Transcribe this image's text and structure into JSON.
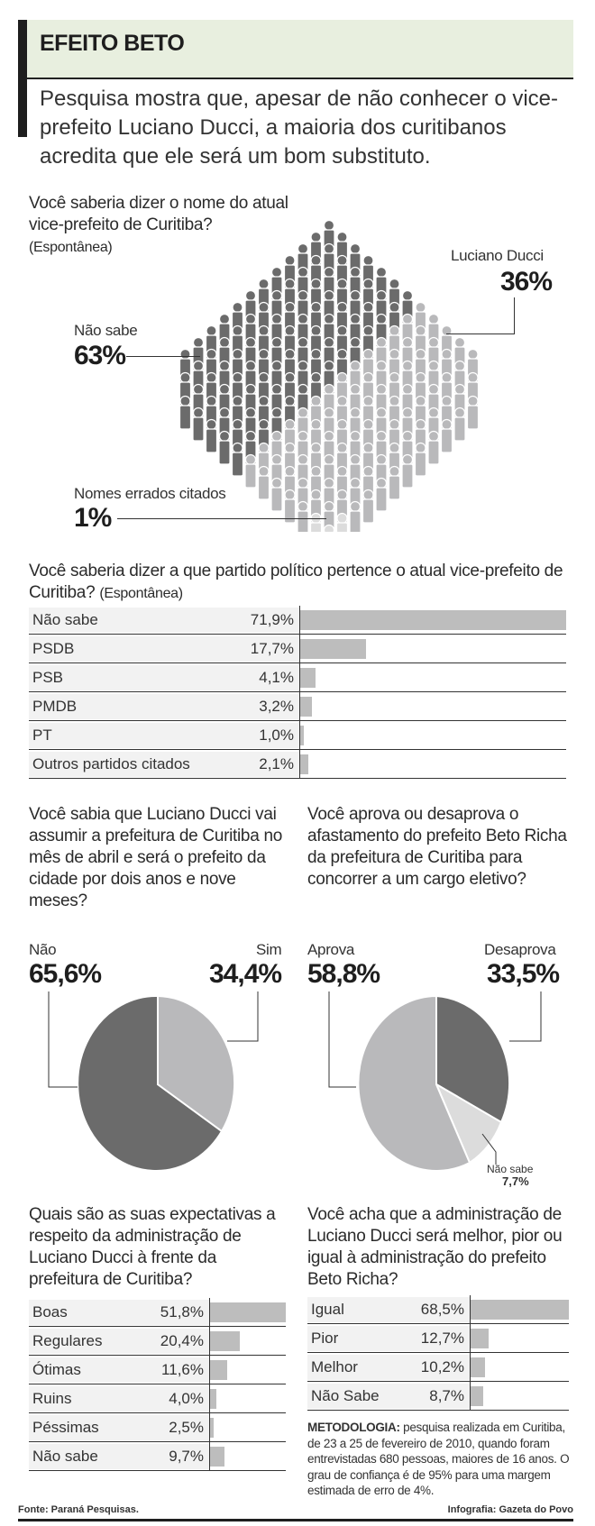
{
  "header": {
    "title": "EFEITO BETO",
    "subtitle": "Pesquisa mostra que, apesar de não conhecer o vice-prefeito Luciano Ducci, a maioria dos curitibanos acredita que ele será um bom substituto."
  },
  "q1": {
    "question": "Você saberia dizer o nome do atual vice-prefeito de Curitiba?",
    "note": "(Espontânea)",
    "items": [
      {
        "label": "Não sabe",
        "value": "63%"
      },
      {
        "label": "Luciano Ducci",
        "value": "36%"
      },
      {
        "label": "Nomes errados citados",
        "value": "1%"
      }
    ]
  },
  "q2": {
    "question": "Você saberia dizer a que partido político pertence o atual vice-prefeito de Curitiba?",
    "note": "(Espontânea)",
    "rows": [
      {
        "label": "Não sabe",
        "value": "71,9%",
        "pct": 71.9
      },
      {
        "label": "PSDB",
        "value": "17,7%",
        "pct": 17.7
      },
      {
        "label": "PSB",
        "value": "4,1%",
        "pct": 4.1
      },
      {
        "label": "PMDB",
        "value": "3,2%",
        "pct": 3.2
      },
      {
        "label": "PT",
        "value": "1,0%",
        "pct": 1.0
      },
      {
        "label": "Outros partidos citados",
        "value": "2,1%",
        "pct": 2.1
      }
    ]
  },
  "q3": {
    "question": "Você sabia que Luciano Ducci vai assumir a prefeitura de Curitiba no mês de abril e será o prefeito da cidade por dois anos e nove meses?",
    "items": [
      {
        "label": "Não",
        "value": "65,6%"
      },
      {
        "label": "Sim",
        "value": "34,4%"
      }
    ]
  },
  "q4": {
    "question": "Você aprova ou desaprova o afastamento do prefeito Beto Richa da prefeitura de Curitiba para concorrer a um cargo eletivo?",
    "items": [
      {
        "label": "Aprova",
        "value": "58,8%"
      },
      {
        "label": "Desaprova",
        "value": "33,5%"
      },
      {
        "label": "Não sabe",
        "value": "7,7%"
      }
    ]
  },
  "q5": {
    "question": "Quais são as suas expectativas a respeito da administração de Luciano Ducci à frente da prefeitura de Curitiba?",
    "rows": [
      {
        "label": "Boas",
        "value": "51,8%",
        "pct": 51.8
      },
      {
        "label": "Regulares",
        "value": "20,4%",
        "pct": 20.4
      },
      {
        "label": "Ótimas",
        "value": "11,6%",
        "pct": 11.6
      },
      {
        "label": "Ruins",
        "value": "4,0%",
        "pct": 4.0
      },
      {
        "label": "Péssimas",
        "value": "2,5%",
        "pct": 2.5
      },
      {
        "label": "Não sabe",
        "value": "9,7%",
        "pct": 9.7
      }
    ]
  },
  "q6": {
    "question": "Você acha que a administração de Luciano Ducci será melhor, pior ou igual à administração do prefeito Beto Richa?",
    "rows": [
      {
        "label": "Igual",
        "value": "68,5%",
        "pct": 68.5
      },
      {
        "label": "Pior",
        "value": "12,7%",
        "pct": 12.7
      },
      {
        "label": "Melhor",
        "value": "10,2%",
        "pct": 10.2
      },
      {
        "label": "Não Sabe",
        "value": "8,7%",
        "pct": 8.7
      }
    ]
  },
  "methodology": {
    "label": "METODOLOGIA:",
    "text": "pesquisa realizada em Curitiba, de 23 a 25 de fevereiro de 2010, quando foram entrevistadas 680 pessoas, maiores de 16 anos. O grau de confiança é de 95% para uma margem estimada de erro de 4%."
  },
  "footer": {
    "source": "Fonte: Paraná Pesquisas.",
    "credit": "Infografia: Gazeta do Povo"
  },
  "colors": {
    "dark": "#6b6b6b",
    "mid": "#b9b9bb",
    "light": "#dcdcdc",
    "bar": "#bdbdbd",
    "header_bg": "#e8efdf"
  },
  "chart_data": [
    {
      "type": "pictogram",
      "title": "Você saberia dizer o nome do atual vice-prefeito de Curitiba? (Espontânea)",
      "categories": [
        "Não sabe",
        "Luciano Ducci",
        "Nomes errados citados"
      ],
      "values": [
        63,
        36,
        1
      ]
    },
    {
      "type": "bar",
      "orientation": "horizontal",
      "title": "Você saberia dizer a que partido político pertence o atual vice-prefeito de Curitiba? (Espontânea)",
      "categories": [
        "Não sabe",
        "PSDB",
        "PSB",
        "PMDB",
        "PT",
        "Outros partidos citados"
      ],
      "values": [
        71.9,
        17.7,
        4.1,
        3.2,
        1.0,
        2.1
      ]
    },
    {
      "type": "pie",
      "title": "Você sabia que Luciano Ducci vai assumir a prefeitura de Curitiba no mês de abril e será o prefeito da cidade por dois anos e nove meses?",
      "categories": [
        "Não",
        "Sim"
      ],
      "values": [
        65.6,
        34.4
      ]
    },
    {
      "type": "pie",
      "title": "Você aprova ou desaprova o afastamento do prefeito Beto Richa da prefeitura de Curitiba para concorrer a um cargo eletivo?",
      "categories": [
        "Aprova",
        "Desaprova",
        "Não sabe"
      ],
      "values": [
        58.8,
        33.5,
        7.7
      ]
    },
    {
      "type": "bar",
      "orientation": "horizontal",
      "title": "Quais são as suas expectativas a respeito da administração de Luciano Ducci à frente da prefeitura de Curitiba?",
      "categories": [
        "Boas",
        "Regulares",
        "Ótimas",
        "Ruins",
        "Péssimas",
        "Não sabe"
      ],
      "values": [
        51.8,
        20.4,
        11.6,
        4.0,
        2.5,
        9.7
      ]
    },
    {
      "type": "bar",
      "orientation": "horizontal",
      "title": "Você acha que a administração de Luciano Ducci será melhor, pior ou igual à administração do prefeito Beto Richa?",
      "categories": [
        "Igual",
        "Pior",
        "Melhor",
        "Não Sabe"
      ],
      "values": [
        68.5,
        12.7,
        10.2,
        8.7
      ]
    }
  ]
}
